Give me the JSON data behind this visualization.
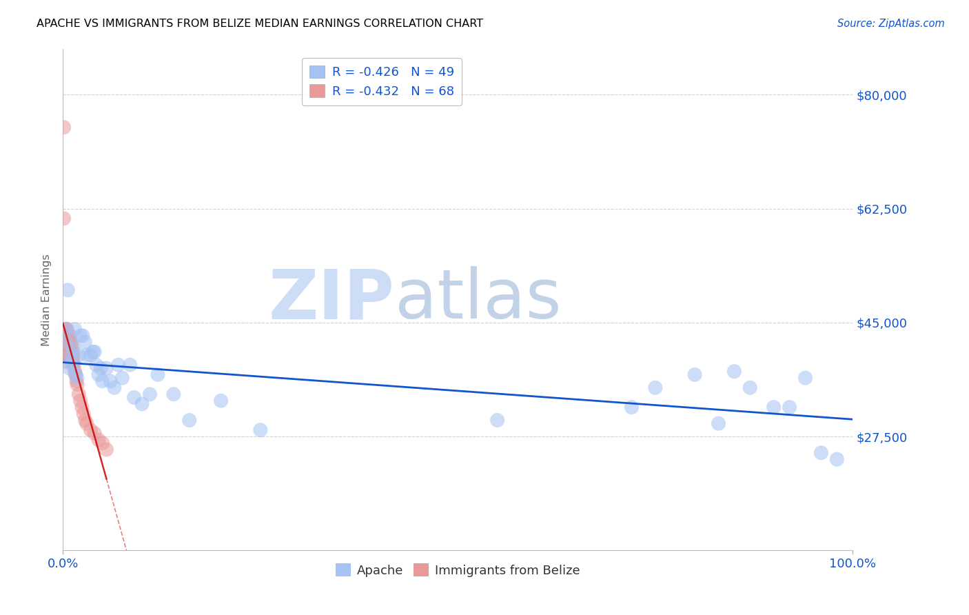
{
  "title": "APACHE VS IMMIGRANTS FROM BELIZE MEDIAN EARNINGS CORRELATION CHART",
  "source": "Source: ZipAtlas.com",
  "ylabel": "Median Earnings",
  "xlim": [
    0.0,
    1.0
  ],
  "ylim": [
    10000,
    87000
  ],
  "yticks": [
    27500,
    45000,
    62500,
    80000
  ],
  "ytick_labels": [
    "$27,500",
    "$45,000",
    "$62,500",
    "$80,000"
  ],
  "apache_R": -0.426,
  "apache_N": 49,
  "belize_R": -0.432,
  "belize_N": 68,
  "apache_color": "#a4c2f4",
  "belize_color": "#ea9999",
  "apache_line_color": "#1155cc",
  "belize_line_color": "#cc0000",
  "watermark_zip_color": "#c9daf8",
  "watermark_atlas_color": "#b4c7e7",
  "background_color": "#ffffff",
  "grid_color": "#cccccc",
  "apache_x": [
    0.004,
    0.005,
    0.006,
    0.008,
    0.01,
    0.011,
    0.012,
    0.013,
    0.015,
    0.016,
    0.018,
    0.02,
    0.022,
    0.025,
    0.028,
    0.03,
    0.035,
    0.038,
    0.04,
    0.042,
    0.045,
    0.048,
    0.05,
    0.055,
    0.06,
    0.065,
    0.07,
    0.075,
    0.085,
    0.09,
    0.1,
    0.11,
    0.12,
    0.14,
    0.16,
    0.2,
    0.25,
    0.55,
    0.72,
    0.75,
    0.8,
    0.83,
    0.85,
    0.87,
    0.9,
    0.92,
    0.94,
    0.96,
    0.98
  ],
  "apache_y": [
    44000,
    42000,
    50000,
    38000,
    40000,
    39000,
    38500,
    41000,
    44000,
    37000,
    36500,
    40000,
    43000,
    43000,
    42000,
    40000,
    40000,
    40500,
    40500,
    38500,
    37000,
    38000,
    36000,
    38000,
    36000,
    35000,
    38500,
    36500,
    38500,
    33500,
    32500,
    34000,
    37000,
    34000,
    30000,
    33000,
    28500,
    30000,
    32000,
    35000,
    37000,
    29500,
    37500,
    35000,
    32000,
    32000,
    36500,
    25000,
    24000
  ],
  "belize_x": [
    0.001,
    0.001,
    0.001,
    0.001,
    0.001,
    0.002,
    0.002,
    0.002,
    0.002,
    0.002,
    0.003,
    0.003,
    0.003,
    0.003,
    0.003,
    0.004,
    0.004,
    0.004,
    0.004,
    0.004,
    0.004,
    0.005,
    0.005,
    0.005,
    0.005,
    0.005,
    0.006,
    0.006,
    0.006,
    0.006,
    0.006,
    0.006,
    0.007,
    0.007,
    0.007,
    0.007,
    0.008,
    0.008,
    0.008,
    0.008,
    0.009,
    0.009,
    0.009,
    0.01,
    0.01,
    0.01,
    0.011,
    0.011,
    0.012,
    0.012,
    0.013,
    0.013,
    0.014,
    0.015,
    0.016,
    0.017,
    0.018,
    0.02,
    0.022,
    0.024,
    0.026,
    0.028,
    0.03,
    0.035,
    0.04,
    0.045,
    0.05,
    0.055
  ],
  "belize_y": [
    75000,
    61000,
    43000,
    42000,
    41000,
    43500,
    42000,
    41000,
    40000,
    39000,
    44000,
    43000,
    42000,
    41000,
    40000,
    44000,
    43000,
    42500,
    42000,
    41500,
    40000,
    44000,
    43000,
    42000,
    41000,
    40000,
    43500,
    43000,
    42000,
    41500,
    41000,
    40000,
    42500,
    42000,
    41500,
    40000,
    43000,
    42000,
    41000,
    40000,
    42500,
    41500,
    40000,
    42000,
    41000,
    40000,
    41500,
    40000,
    40500,
    39500,
    40000,
    39000,
    38500,
    37500,
    37000,
    36000,
    35500,
    34000,
    33000,
    32000,
    31000,
    30000,
    29500,
    28500,
    28000,
    27000,
    26500,
    25500
  ]
}
